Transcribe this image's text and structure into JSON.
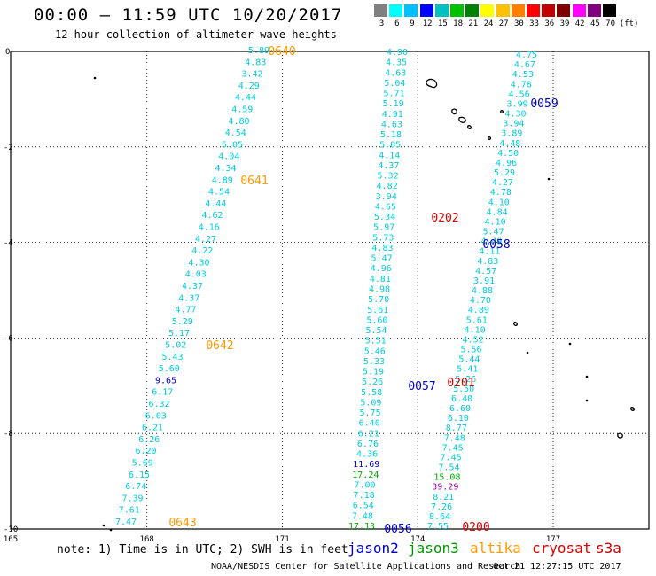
{
  "header": {
    "title": "00:00 – 11:59 UTC 10/20/2017",
    "subtitle": "12 hour collection of altimeter wave heights"
  },
  "color_scale": {
    "labels": [
      "3",
      "6",
      "9",
      "12",
      "15",
      "18",
      "21",
      "24",
      "27",
      "30",
      "33",
      "36",
      "39",
      "42",
      "45",
      "70",
      "(ft)"
    ],
    "colors": [
      "#808080",
      "#00ffff",
      "#00bfff",
      "#0000ff",
      "#00c0c0",
      "#00c000",
      "#008000",
      "#ffff00",
      "#ffc000",
      "#ff8000",
      "#ff0000",
      "#c00000",
      "#800000",
      "#ff00ff",
      "#800080",
      "#000000"
    ]
  },
  "axes": {
    "x_ticks": [
      "165",
      "168",
      "171",
      "174",
      "177"
    ],
    "y_ticks": [
      "0",
      "-2",
      "-4",
      "-6",
      "-8",
      "-10"
    ]
  },
  "tracks": [
    {
      "name": "track-1",
      "labels": [
        "5.89",
        "4.83",
        "3.42",
        "4.29",
        "4.44",
        "4.59",
        "4.80",
        "4.54",
        "5.05",
        "4.04",
        "4.34",
        "4.89",
        "4.54",
        "4.44",
        "4.62",
        "4.16",
        "4.27",
        "4.22",
        "4.30",
        "4.03",
        "4.37",
        "4.37",
        "4.77",
        "5.29",
        "5.17",
        "5.02",
        "5.43",
        "5.60",
        "9.65",
        "6.17",
        "6.32",
        "6.03",
        "6.21",
        "6.26",
        "6.20",
        "5.69",
        "6.15",
        "6.74",
        "7.39",
        "7.61",
        "7.47"
      ]
    },
    {
      "name": "track-2",
      "labels": [
        "4.90",
        "4.35",
        "4.63",
        "5.04",
        "5.71",
        "5.19",
        "4.91",
        "4.63",
        "5.18",
        "5.85",
        "4.14",
        "4.37",
        "5.32",
        "4.82",
        "3.94",
        "4.65",
        "5.34",
        "5.97",
        "5.73",
        "4.83",
        "5.47",
        "4.96",
        "4.81",
        "4.98",
        "5.70",
        "5.61",
        "5.60",
        "5.54",
        "5.51",
        "5.46",
        "5.33",
        "5.19",
        "5.26",
        "5.58",
        "5.09",
        "5.75",
        "6.40",
        "6.21",
        "6.76",
        "4.36",
        "11.69",
        "17.24",
        "7.00",
        "7.18",
        "6.54",
        "7.48",
        "17.13"
      ]
    },
    {
      "name": "track-3",
      "labels": [
        "4.75",
        "4.67",
        "4.53",
        "4.78",
        "4.56",
        "3.99",
        "4.30",
        "3.94",
        "3.89",
        "4.48",
        "4.50",
        "4.96",
        "5.29",
        "4.27",
        "4.78",
        "4.10",
        "4.84",
        "4.10",
        "5.47",
        "4.49",
        "4.11",
        "4.83",
        "4.57",
        "3.91",
        "4.88",
        "4.70",
        "4.89",
        "5.61",
        "4.10",
        "4.52",
        "5.56",
        "5.44",
        "5.41",
        "5.26",
        "5.50",
        "6.40",
        "6.60",
        "6.10",
        "8.77",
        "7.48",
        "7.45",
        "7.45",
        "7.54",
        "15.08",
        "39.29",
        "8.21",
        "7.26",
        "8.64",
        "7.55"
      ]
    }
  ],
  "time_labels": [
    {
      "text": "0640",
      "color": "#ff9900"
    },
    {
      "text": "0641",
      "color": "#ff9900"
    },
    {
      "text": "0642",
      "color": "#ff9900"
    },
    {
      "text": "0643",
      "color": "#ff9900"
    },
    {
      "text": "0202",
      "color": "#dd0000"
    },
    {
      "text": "0201",
      "color": "#dd0000"
    },
    {
      "text": "0200",
      "color": "#dd0000"
    },
    {
      "text": "0059",
      "color": "#0000cc"
    },
    {
      "text": "0058",
      "color": "#0000cc"
    },
    {
      "text": "0057",
      "color": "#0000cc"
    },
    {
      "text": "0056",
      "color": "#0000cc"
    }
  ],
  "note": "note: 1) Time is in UTC; 2) SWH is in feet",
  "satellites": [
    {
      "name": "jason2",
      "color": "#0000cc"
    },
    {
      "name": "jason3",
      "color": "#009900"
    },
    {
      "name": "altika",
      "color": "#ff9900"
    },
    {
      "name": "cryosat",
      "color": "#dd0000"
    },
    {
      "name": "s3a",
      "color": "#cc0000"
    }
  ],
  "footer": "NOAA/NESDIS Center for Satellite Applications and Research",
  "timestamp": "Oct 21 12:27:15 UTC 2017"
}
